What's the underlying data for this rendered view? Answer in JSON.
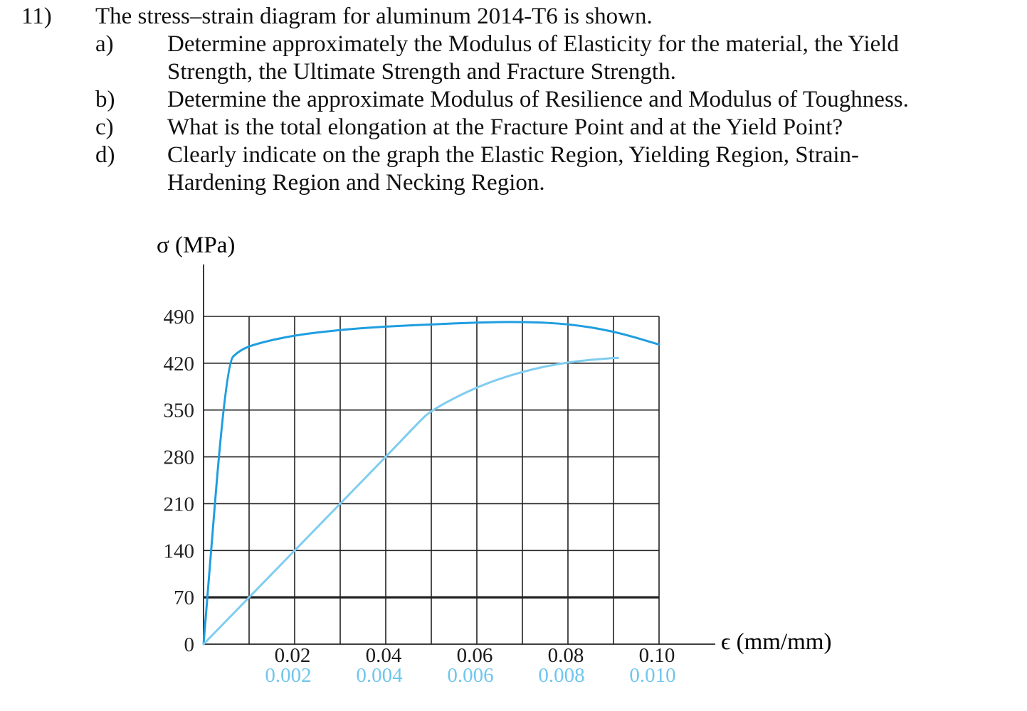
{
  "question": {
    "number": "11)",
    "stem": "The stress–strain diagram for aluminum 2014-T6 is shown.",
    "parts": [
      {
        "label": "a)",
        "lines": [
          "Determine approximately the Modulus of Elasticity for the material, the Yield",
          "Strength, the Ultimate Strength and Fracture Strength."
        ]
      },
      {
        "label": "b)",
        "lines": [
          "Determine the approximate Modulus of Resilience and Modulus of Toughness."
        ]
      },
      {
        "label": "c)",
        "lines": [
          "What is the total elongation at the Fracture Point and at the Yield Point?"
        ]
      },
      {
        "label": "d)",
        "lines": [
          "Clearly indicate on the graph the Elastic Region, Yielding Region, Strain-",
          "Hardening Region and Necking Region."
        ]
      }
    ]
  },
  "chart_data": {
    "type": "line",
    "title": "",
    "ylabel": "σ (MPa)",
    "xlabel": "ϵ (mm/mm)",
    "ylim": [
      0,
      490
    ],
    "y_ticks": [
      0,
      70,
      140,
      210,
      280,
      350,
      420,
      490
    ],
    "y_tick_labels": [
      "0",
      "70",
      "140",
      "210",
      "280",
      "350",
      "420",
      "490"
    ],
    "x_upper_scale": {
      "xlim": [
        0,
        0.1
      ],
      "tick_values": [
        0.02,
        0.04,
        0.06,
        0.08,
        0.1
      ],
      "tick_labels": [
        "0.02",
        "0.04",
        "0.06",
        "0.08",
        "0.10"
      ],
      "color": "#1a1a1a"
    },
    "x_lower_scale": {
      "xlim": [
        0,
        0.01
      ],
      "tick_values": [
        0.002,
        0.004,
        0.006,
        0.008,
        0.01
      ],
      "tick_labels": [
        "0.002",
        "0.004",
        "0.006",
        "0.008",
        "0.010"
      ],
      "color": "#6fc6ee"
    },
    "grid": true,
    "series": [
      {
        "scale": "upper",
        "color": "#1f9ee0",
        "points": [
          [
            0,
            0
          ],
          [
            0.005,
            420
          ],
          [
            0.008,
            440
          ],
          [
            0.012,
            450
          ],
          [
            0.02,
            462
          ],
          [
            0.03,
            470
          ],
          [
            0.04,
            475
          ],
          [
            0.05,
            478
          ],
          [
            0.06,
            481
          ],
          [
            0.07,
            482
          ],
          [
            0.08,
            479
          ],
          [
            0.09,
            468
          ],
          [
            0.1,
            448
          ]
        ]
      },
      {
        "scale": "lower",
        "color": "#7fcdf0",
        "points": [
          [
            0,
            0
          ],
          [
            0.001,
            70
          ],
          [
            0.002,
            140
          ],
          [
            0.003,
            210
          ],
          [
            0.004,
            280
          ],
          [
            0.0047,
            330
          ],
          [
            0.005,
            350
          ],
          [
            0.006,
            385
          ],
          [
            0.007,
            408
          ],
          [
            0.008,
            422
          ],
          [
            0.009,
            428
          ],
          [
            0.0091,
            428
          ]
        ]
      }
    ]
  }
}
